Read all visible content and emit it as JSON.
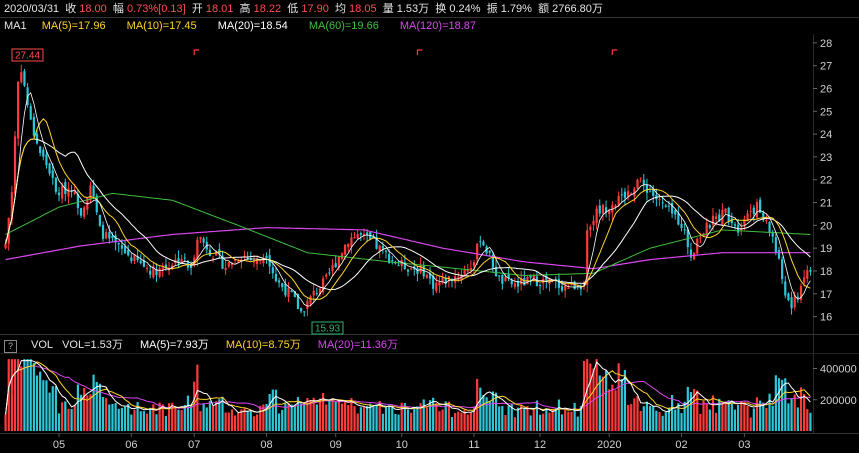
{
  "info": {
    "date": "2020/03/31",
    "close_label": "收",
    "close": "18.00",
    "chg_label": "幅",
    "chg": "0.73%[0.13]",
    "open_label": "开",
    "open": "18.01",
    "high_label": "高",
    "high": "18.22",
    "low_label": "低",
    "low": "17.90",
    "avg_label": "均",
    "avg": "18.05",
    "vol_label": "量",
    "vol": "1.53万",
    "turn_label": "换",
    "turn": "0.24%",
    "amp_label": "振",
    "amp": "1.79%",
    "amt_label": "额",
    "amt": "2766.80万"
  },
  "ma_legend": {
    "name": "MA1",
    "ma5": "MA(5)=17.96",
    "ma10": "MA(10)=17.45",
    "ma20": "MA(20)=18.54",
    "ma60": "MA(60)=19.66",
    "ma120": "MA(120)=18.87"
  },
  "vol_legend": {
    "icon": "?",
    "name": "VOL",
    "vol": "VOL=1.53万",
    "ma5": "MA(5)=7.93万",
    "ma10": "MA(10)=8.75万",
    "ma20": "MA(20)=11.36万"
  },
  "colors": {
    "up": "#ff3b3b",
    "down": "#2ec7d8",
    "ma5": "#ffffff",
    "ma10": "#ffd42a",
    "ma20": "#ffffff",
    "ma60": "#3fbf3f",
    "ma120": "#d946ef",
    "accent": "#ff4d4d"
  },
  "chart_data": {
    "type": "candlestick",
    "price_axis": {
      "ticks": [
        "28",
        "27",
        "26",
        "25",
        "24",
        "23",
        "22",
        "21",
        "20",
        "19",
        "18",
        "17",
        "16"
      ],
      "range": [
        15.5,
        28.3
      ]
    },
    "volume_axis": {
      "ticks": [
        "400000",
        "200000"
      ],
      "range": [
        0,
        480000
      ]
    },
    "months": [
      "05",
      "06",
      "07",
      "08",
      "09",
      "10",
      "11",
      "12",
      "2020",
      "02",
      "03"
    ],
    "annotations": {
      "max": "27.44",
      "min": "15.93"
    },
    "price_anchors": [
      [
        "2019-04-08",
        19.2
      ],
      [
        "2019-04-10",
        21.5
      ],
      [
        "2019-04-12",
        26.3
      ],
      [
        "2019-04-15",
        26.9
      ],
      [
        "2019-04-18",
        24.5
      ],
      [
        "2019-04-23",
        23.2
      ],
      [
        "2019-04-26",
        22.4
      ],
      [
        "2019-04-30",
        21.4
      ],
      [
        "2019-05-07",
        21.7
      ],
      [
        "2019-05-10",
        20.6
      ],
      [
        "2019-05-15",
        21.8
      ],
      [
        "2019-05-20",
        19.8
      ],
      [
        "2019-05-24",
        19.2
      ],
      [
        "2019-05-31",
        18.7
      ],
      [
        "2019-06-06",
        18.3
      ],
      [
        "2019-06-12",
        18.0
      ],
      [
        "2019-06-18",
        18.2
      ],
      [
        "2019-06-25",
        18.6
      ],
      [
        "2019-06-28",
        18.0
      ],
      [
        "2019-07-02",
        19.6
      ],
      [
        "2019-07-08",
        18.9
      ],
      [
        "2019-07-15",
        18.2
      ],
      [
        "2019-07-22",
        18.7
      ],
      [
        "2019-07-29",
        18.4
      ],
      [
        "2019-08-01",
        18.8
      ],
      [
        "2019-08-06",
        17.6
      ],
      [
        "2019-08-13",
        16.9
      ],
      [
        "2019-08-16",
        16.2
      ],
      [
        "2019-08-22",
        17.0
      ],
      [
        "2019-08-28",
        17.6
      ],
      [
        "2019-09-02",
        18.4
      ],
      [
        "2019-09-06",
        19.4
      ],
      [
        "2019-09-11",
        19.6
      ],
      [
        "2019-09-18",
        19.2
      ],
      [
        "2019-09-25",
        18.6
      ],
      [
        "2019-09-30",
        18.3
      ],
      [
        "2019-10-10",
        18.0
      ],
      [
        "2019-10-15",
        17.4
      ],
      [
        "2019-10-21",
        17.6
      ],
      [
        "2019-10-28",
        17.9
      ],
      [
        "2019-11-01",
        18.4
      ],
      [
        "2019-11-05",
        19.5
      ],
      [
        "2019-11-08",
        18.6
      ],
      [
        "2019-11-13",
        17.6
      ],
      [
        "2019-11-20",
        17.4
      ],
      [
        "2019-11-28",
        17.6
      ],
      [
        "2019-12-05",
        17.5
      ],
      [
        "2019-12-12",
        17.3
      ],
      [
        "2019-12-18",
        17.4
      ],
      [
        "2019-12-20",
        17.5
      ],
      [
        "2019-12-23",
        19.8
      ],
      [
        "2019-12-26",
        20.6
      ],
      [
        "2019-12-31",
        20.8
      ],
      [
        "2020-01-07",
        21.2
      ],
      [
        "2020-01-10",
        21.6
      ],
      [
        "2020-01-14",
        22.0
      ],
      [
        "2020-01-20",
        21.5
      ],
      [
        "2020-01-23",
        21.0
      ],
      [
        "2020-02-03",
        20.1
      ],
      [
        "2020-02-06",
        18.7
      ],
      [
        "2020-02-10",
        19.4
      ],
      [
        "2020-02-17",
        20.2
      ],
      [
        "2020-02-21",
        20.6
      ],
      [
        "2020-02-27",
        19.9
      ],
      [
        "2020-03-03",
        20.6
      ],
      [
        "2020-03-06",
        20.8
      ],
      [
        "2020-03-10",
        20.3
      ],
      [
        "2020-03-13",
        19.5
      ],
      [
        "2020-03-17",
        18.3
      ],
      [
        "2020-03-19",
        17.0
      ],
      [
        "2020-03-23",
        16.4
      ],
      [
        "2020-03-25",
        17.0
      ],
      [
        "2020-03-27",
        17.8
      ],
      [
        "2020-03-31",
        18.0
      ]
    ],
    "ma_anchors": {
      "ma120": [
        [
          "2019-04-08",
          18.5
        ],
        [
          "2019-05-10",
          19.1
        ],
        [
          "2019-06-20",
          19.6
        ],
        [
          "2019-08-01",
          19.9
        ],
        [
          "2019-09-15",
          19.8
        ],
        [
          "2019-10-20",
          19.0
        ],
        [
          "2019-11-25",
          18.4
        ],
        [
          "2019-12-25",
          18.1
        ],
        [
          "2020-01-20",
          18.5
        ],
        [
          "2020-02-20",
          18.8
        ],
        [
          "2020-03-31",
          18.8
        ]
      ],
      "ma60": [
        [
          "2019-04-08",
          19.6
        ],
        [
          "2019-05-01",
          20.8
        ],
        [
          "2019-05-25",
          21.4
        ],
        [
          "2019-06-20",
          21.1
        ],
        [
          "2019-07-20",
          20.0
        ],
        [
          "2019-08-20",
          18.8
        ],
        [
          "2019-09-25",
          18.4
        ],
        [
          "2019-10-25",
          18.1
        ],
        [
          "2019-11-25",
          17.8
        ],
        [
          "2019-12-25",
          17.9
        ],
        [
          "2020-01-20",
          19.0
        ],
        [
          "2020-02-20",
          19.8
        ],
        [
          "2020-03-31",
          19.6
        ]
      ]
    }
  }
}
